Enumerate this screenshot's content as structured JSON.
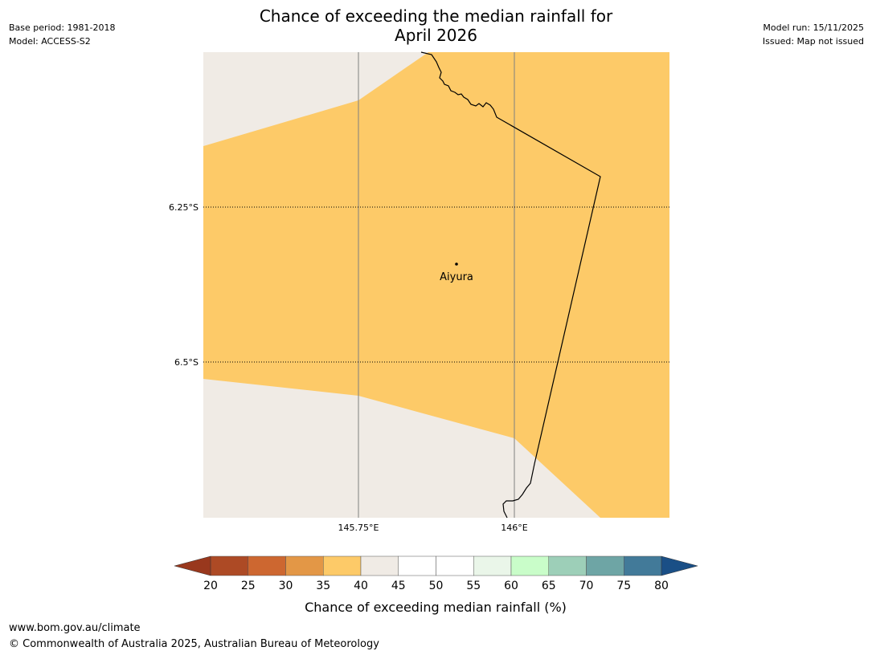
{
  "title": {
    "line1": "Chance of exceeding the median rainfall for",
    "line2": "April 2026"
  },
  "meta_left": {
    "base_period": "Base period: 1981-2018",
    "model": "Model: ACCESS-S2"
  },
  "meta_right": {
    "model_run": "Model run: 15/11/2025",
    "issued": "Issued: Map not issued"
  },
  "map": {
    "lat_labels": [
      "6.25°S",
      "6.5°S"
    ],
    "lon_labels": [
      "145.75°E",
      "146°E"
    ],
    "place": {
      "name": "Aiyura",
      "lon": 145.905,
      "lat": -6.343
    },
    "colors": {
      "land_neutral": "#f0ebe5",
      "fill_35_40": "#fdca68",
      "border": "#000000",
      "grid": "#808080"
    }
  },
  "legend": {
    "title": "Chance of exceeding median rainfall (%)",
    "ticks": [
      "20",
      "25",
      "30",
      "35",
      "40",
      "45",
      "50",
      "55",
      "60",
      "65",
      "70",
      "75",
      "80"
    ],
    "colors": [
      "#ad4a25",
      "#cd6730",
      "#e39746",
      "#fdca68",
      "#f0ebe5",
      "#ffffff",
      "#ffffff",
      "#eaf6e9",
      "#c9fdc9",
      "#9dcfb8",
      "#6ea5a5",
      "#427a99"
    ],
    "under_color": "#99381d",
    "over_color": "#1a4f86"
  },
  "footer": {
    "url": "www.bom.gov.au/climate",
    "copyright": "© Commonwealth of Australia 2025, Australian Bureau of Meteorology"
  }
}
